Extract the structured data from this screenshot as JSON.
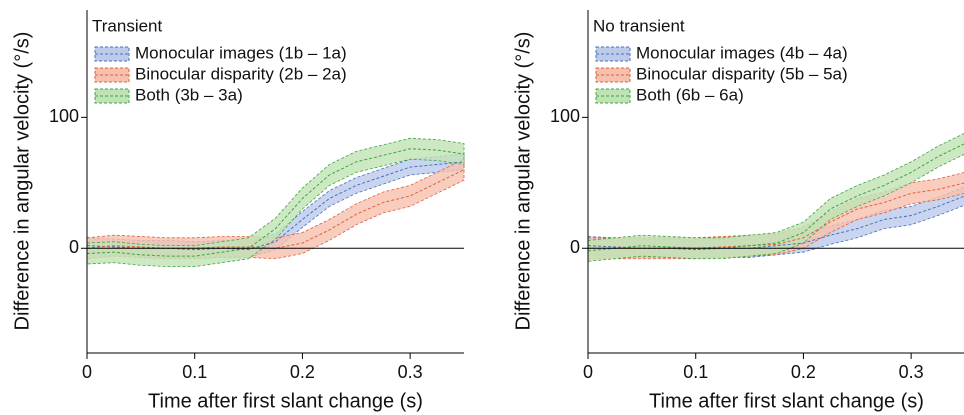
{
  "chart_data": [
    {
      "type": "line",
      "title": "Transient",
      "xlabel": "Time after first slant change (s)",
      "ylabel": "Difference in angular velocity (°/s)",
      "x": [
        0,
        0.025,
        0.05,
        0.075,
        0.1,
        0.125,
        0.15,
        0.175,
        0.2,
        0.225,
        0.25,
        0.275,
        0.3,
        0.325,
        0.35
      ],
      "series": [
        {
          "name": "Monocular images (1b – 1a)",
          "color": "#4a6fc0",
          "fill": "#bccbea",
          "band": 6,
          "values": [
            2,
            1,
            0,
            0,
            -1,
            0,
            -1,
            5,
            22,
            38,
            48,
            55,
            62,
            64,
            66
          ]
        },
        {
          "name": "Binocular disparity (2b – 2a)",
          "color": "#e0603f",
          "fill": "#f6c0ae",
          "band": 8,
          "values": [
            0,
            2,
            1,
            0,
            0,
            1,
            1,
            0,
            4,
            14,
            26,
            35,
            40,
            50,
            60
          ]
        },
        {
          "name": "Both (3b – 3a)",
          "color": "#3ea63e",
          "fill": "#bfe3b5",
          "band": 8,
          "values": [
            -4,
            -3,
            -5,
            -6,
            -6,
            -3,
            0,
            15,
            38,
            56,
            66,
            71,
            76,
            75,
            72
          ]
        }
      ],
      "xlim": [
        0,
        0.35
      ],
      "ylim": [
        -80,
        182
      ],
      "xticks": [
        0,
        0.1,
        0.2,
        0.3
      ],
      "yticks": [
        0,
        100
      ],
      "zero_line": true
    },
    {
      "type": "line",
      "title": "No transient",
      "xlabel": "Time after first slant change (s)",
      "ylabel": "Difference in angular velocity (°/s)",
      "x": [
        0,
        0.025,
        0.05,
        0.075,
        0.1,
        0.125,
        0.15,
        0.175,
        0.2,
        0.225,
        0.25,
        0.275,
        0.3,
        0.325,
        0.35
      ],
      "series": [
        {
          "name": "Monocular images (4b – 4a)",
          "color": "#4a6fc0",
          "fill": "#bccbea",
          "band": 7,
          "values": [
            2,
            1,
            0,
            0,
            -1,
            0,
            0,
            2,
            4,
            10,
            15,
            22,
            25,
            32,
            40
          ]
        },
        {
          "name": "Binocular disparity (5b – 5a)",
          "color": "#e0603f",
          "fill": "#f6c0ae",
          "band": 8,
          "values": [
            0,
            0,
            0,
            0,
            0,
            1,
            2,
            3,
            8,
            20,
            30,
            35,
            42,
            45,
            50
          ]
        },
        {
          "name": "Both (6b – 6a)",
          "color": "#3ea63e",
          "fill": "#bfe3b5",
          "band": 8,
          "values": [
            -2,
            0,
            2,
            1,
            0,
            0,
            2,
            4,
            12,
            30,
            40,
            48,
            58,
            70,
            80
          ]
        }
      ],
      "xlim": [
        0,
        0.35
      ],
      "ylim": [
        -80,
        182
      ],
      "xticks": [
        0,
        0.1,
        0.2,
        0.3
      ],
      "yticks": [
        0,
        100
      ],
      "zero_line": true
    }
  ]
}
